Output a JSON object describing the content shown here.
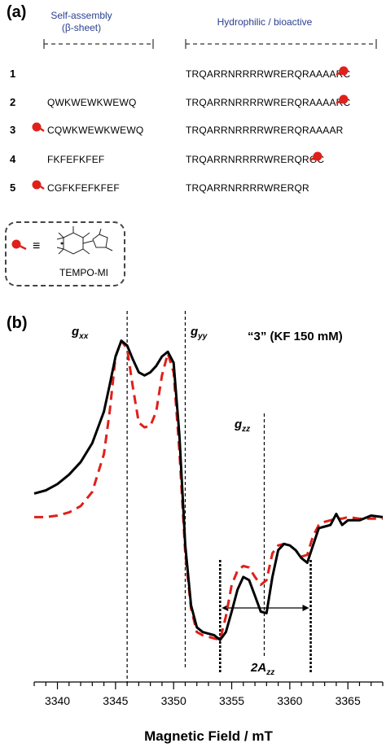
{
  "panel_a": {
    "label": "(a)",
    "header_left": [
      "Self-assembly",
      "(β-sheet)"
    ],
    "header_right": "Hydrophilic / bioactive",
    "rows": [
      {
        "num": "1",
        "left": "",
        "right": "TRQARRNRRRRWRERQRAAAARC",
        "tempo_left": false,
        "tempo_right": true
      },
      {
        "num": "2",
        "left": "QWKWEWKWEWQ",
        "right": "TRQARRNRRRRWRERQRAAAARC",
        "tempo_left": false,
        "tempo_right": true
      },
      {
        "num": "3",
        "left": "CQWKWEWKWEWQ",
        "right": "TRQARRNRRRRWRERQRAAAAR",
        "tempo_left": true,
        "tempo_right": false
      },
      {
        "num": "4",
        "left": "FKFEFKFEF",
        "right": "TRQARRNRRRRWRERQRGC",
        "tempo_left": false,
        "tempo_right": true
      },
      {
        "num": "5",
        "left": "CGFKFEFKFEF",
        "right": "TRQARRNRRRRWRERQR",
        "tempo_left": true,
        "tempo_right": false
      }
    ],
    "legend": {
      "symbol": "≡",
      "caption": "TEMPO-MI"
    }
  },
  "panel_b": {
    "label": "(b)",
    "annotation": "“3” (KF 150 mM)",
    "g_labels": {
      "gxx": [
        "g",
        "xx"
      ],
      "gyy": [
        "g",
        "yy"
      ],
      "gzz": [
        "g",
        "zz"
      ]
    },
    "azz_label": [
      "2A",
      "zz"
    ],
    "xlabel": "Magnetic Field / mT",
    "colors": {
      "experimental": "#000000",
      "simulated": "#e0201b",
      "tempo": "#e0201b"
    }
  },
  "chart_data": {
    "type": "line",
    "xlabel": "Magnetic Field / mT",
    "ylabel": "",
    "xlim": [
      3338,
      3368
    ],
    "ylim": [
      -1.1,
      1.2
    ],
    "xticks": [
      3340,
      3345,
      3350,
      3355,
      3360,
      3365
    ],
    "reference_lines": [
      {
        "name": "g_xx",
        "x": 3346.0
      },
      {
        "name": "g_yy",
        "x": 3351.0
      },
      {
        "name": "g_zz",
        "x": 3357.8
      },
      {
        "name": "2A_zz_low",
        "x": 3354.0
      },
      {
        "name": "2A_zz_high",
        "x": 3361.8
      }
    ],
    "series": [
      {
        "style": "solid",
        "x": [
          3338,
          3339,
          3340,
          3341,
          3342,
          3343,
          3344,
          3344.5,
          3345,
          3345.5,
          3346,
          3346.5,
          3347,
          3347.5,
          3348,
          3348.5,
          3349,
          3349.5,
          3350,
          3350.5,
          3351,
          3351.5,
          3352,
          3352.5,
          3353,
          3353.5,
          3354,
          3354.5,
          3355,
          3355.5,
          3356,
          3356.5,
          3357,
          3357.5,
          3358,
          3358.5,
          3359,
          3359.5,
          3360,
          3360.5,
          3361,
          3361.5,
          3362,
          3362.5,
          3363,
          3363.5,
          3364,
          3364.5,
          3365,
          3366,
          3367,
          3368
        ],
        "y": [
          0.03,
          0.05,
          0.09,
          0.15,
          0.23,
          0.35,
          0.55,
          0.72,
          0.9,
          1.0,
          0.97,
          0.88,
          0.8,
          0.78,
          0.8,
          0.84,
          0.9,
          0.93,
          0.86,
          0.4,
          -0.3,
          -0.68,
          -0.82,
          -0.85,
          -0.86,
          -0.87,
          -0.9,
          -0.85,
          -0.72,
          -0.58,
          -0.5,
          -0.52,
          -0.62,
          -0.72,
          -0.73,
          -0.5,
          -0.33,
          -0.29,
          -0.3,
          -0.33,
          -0.38,
          -0.41,
          -0.3,
          -0.19,
          -0.18,
          -0.17,
          -0.1,
          -0.17,
          -0.14,
          -0.14,
          -0.11,
          -0.12
        ]
      },
      {
        "style": "dashed",
        "x": [
          3338,
          3339,
          3340,
          3341,
          3342,
          3343,
          3344,
          3344.5,
          3345,
          3345.5,
          3346,
          3346.5,
          3347,
          3347.5,
          3348,
          3348.5,
          3349,
          3349.5,
          3350,
          3350.5,
          3351,
          3351.5,
          3352,
          3352.5,
          3353,
          3353.5,
          3354,
          3354.5,
          3355,
          3355.5,
          3356,
          3356.5,
          3357,
          3357.5,
          3358,
          3358.5,
          3359,
          3359.5,
          3360,
          3360.5,
          3361,
          3361.5,
          3362,
          3362.5,
          3363,
          3363.5,
          3364,
          3364.5,
          3365,
          3366,
          3367,
          3368
        ],
        "y": [
          -0.12,
          -0.12,
          -0.11,
          -0.09,
          -0.05,
          0.04,
          0.28,
          0.55,
          0.9,
          1.0,
          0.95,
          0.7,
          0.48,
          0.45,
          0.46,
          0.55,
          0.78,
          0.92,
          0.8,
          0.3,
          -0.35,
          -0.7,
          -0.85,
          -0.87,
          -0.88,
          -0.89,
          -0.9,
          -0.75,
          -0.55,
          -0.46,
          -0.43,
          -0.44,
          -0.5,
          -0.55,
          -0.52,
          -0.35,
          -0.3,
          -0.29,
          -0.3,
          -0.33,
          -0.37,
          -0.36,
          -0.24,
          -0.17,
          -0.15,
          -0.14,
          -0.13,
          -0.13,
          -0.12,
          -0.13,
          -0.13,
          -0.13
        ]
      }
    ],
    "grid": false,
    "legend": "none",
    "tick_labels": [
      "3340",
      "3345",
      "3350",
      "3355",
      "3360",
      "3365"
    ]
  }
}
